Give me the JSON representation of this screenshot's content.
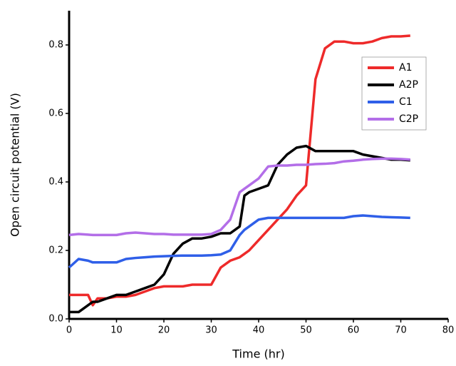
{
  "chart_data": {
    "type": "line",
    "x_label": "Time (hr)",
    "y_label": "Open circuit potential (V)",
    "x": [
      0,
      2,
      4,
      5,
      6,
      8,
      10,
      12,
      14,
      16,
      18,
      20,
      22,
      24,
      26,
      28,
      30,
      32,
      34,
      36,
      37,
      38,
      40,
      42,
      44,
      46,
      48,
      50,
      52,
      54,
      56,
      58,
      60,
      62,
      64,
      66,
      68,
      70,
      72
    ],
    "series": [
      {
        "name": "A1",
        "color": "#ee2a2a",
        "values": [
          0.07,
          0.07,
          0.07,
          0.04,
          0.06,
          0.06,
          0.065,
          0.065,
          0.07,
          0.08,
          0.09,
          0.095,
          0.095,
          0.095,
          0.1,
          0.1,
          0.1,
          0.15,
          0.17,
          0.18,
          0.19,
          0.2,
          0.23,
          0.26,
          0.29,
          0.32,
          0.36,
          0.39,
          0.7,
          0.79,
          0.81,
          0.81,
          0.805,
          0.805,
          0.81,
          0.82,
          0.825,
          0.825,
          0.827
        ]
      },
      {
        "name": "A2P",
        "color": "#000000",
        "values": [
          0.02,
          0.02,
          0.04,
          0.05,
          0.05,
          0.06,
          0.07,
          0.07,
          0.08,
          0.09,
          0.1,
          0.13,
          0.19,
          0.22,
          0.235,
          0.235,
          0.24,
          0.25,
          0.25,
          0.27,
          0.36,
          0.37,
          0.38,
          0.39,
          0.45,
          0.48,
          0.5,
          0.505,
          0.49,
          0.49,
          0.49,
          0.49,
          0.49,
          0.48,
          0.475,
          0.47,
          0.465,
          0.465,
          0.463
        ]
      },
      {
        "name": "C1",
        "color": "#2f5fe8",
        "values": [
          0.15,
          0.175,
          0.17,
          0.165,
          0.165,
          0.165,
          0.165,
          0.175,
          0.178,
          0.18,
          0.182,
          0.183,
          0.184,
          0.185,
          0.185,
          0.185,
          0.186,
          0.188,
          0.2,
          0.245,
          0.26,
          0.27,
          0.29,
          0.295,
          0.295,
          0.295,
          0.295,
          0.295,
          0.295,
          0.295,
          0.295,
          0.295,
          0.3,
          0.302,
          0.3,
          0.298,
          0.297,
          0.296,
          0.295
        ]
      },
      {
        "name": "C2P",
        "color": "#b36ee8",
        "values": [
          0.245,
          0.248,
          0.246,
          0.245,
          0.245,
          0.245,
          0.245,
          0.25,
          0.252,
          0.25,
          0.248,
          0.248,
          0.246,
          0.246,
          0.246,
          0.246,
          0.248,
          0.26,
          0.29,
          0.37,
          0.38,
          0.39,
          0.41,
          0.445,
          0.448,
          0.448,
          0.45,
          0.45,
          0.452,
          0.453,
          0.455,
          0.46,
          0.462,
          0.465,
          0.467,
          0.468,
          0.468,
          0.467,
          0.465
        ]
      }
    ],
    "xlim": [
      0,
      80
    ],
    "xticks": [
      0,
      10,
      20,
      30,
      40,
      50,
      60,
      70,
      80
    ],
    "ylim": [
      0,
      0.9
    ],
    "yticks": [
      {
        "value": 0,
        "label": "0.0"
      },
      0.2,
      0.4,
      0.6,
      0.8
    ],
    "legend": "upper right",
    "grid": false
  }
}
